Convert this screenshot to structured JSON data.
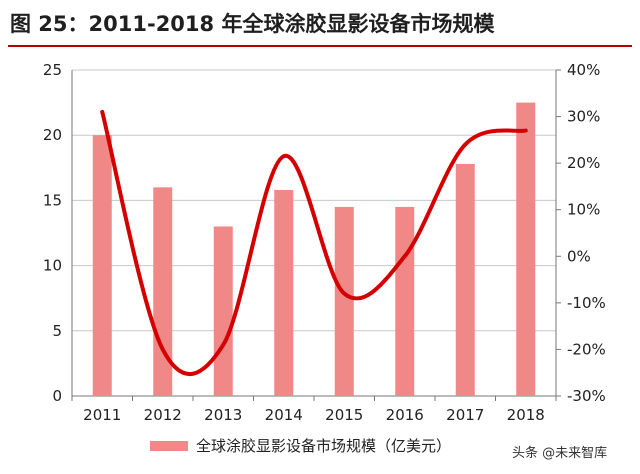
{
  "header": {
    "title": "图 25：2011-2018 年全球涂胶显影设备市场规模"
  },
  "watermark": "头条 @未来智库",
  "colors": {
    "bar": "#f08888",
    "line": "#d40000",
    "title_rule": "#b40000"
  },
  "chart_data": {
    "type": "bar",
    "title": "图 25：2011-2018 年全球涂胶显影设备市场规模",
    "categories": [
      "2011",
      "2012",
      "2013",
      "2014",
      "2015",
      "2016",
      "2017",
      "2018"
    ],
    "series": [
      {
        "name": "全球涂胶显影设备市场规模（亿美元）",
        "type": "bar",
        "axis": "left",
        "values": [
          20.0,
          16.0,
          13.0,
          15.8,
          14.5,
          14.5,
          17.8,
          22.5
        ]
      },
      {
        "type": "line",
        "axis": "right",
        "smooth": true,
        "values": [
          0.31,
          -0.2,
          -0.19,
          0.215,
          -0.08,
          0.0,
          0.24,
          0.27
        ]
      }
    ],
    "y_left": {
      "ylim": [
        0,
        25
      ],
      "ticks": [
        "0",
        "5",
        "10",
        "15",
        "20",
        "25"
      ]
    },
    "y_right": {
      "ylim": [
        -0.3,
        0.4
      ],
      "ticks": [
        "-30%",
        "-20%",
        "-10%",
        "0%",
        "10%",
        "20%",
        "30%",
        "40%"
      ]
    },
    "grid": true,
    "legend": "bottom-center"
  }
}
